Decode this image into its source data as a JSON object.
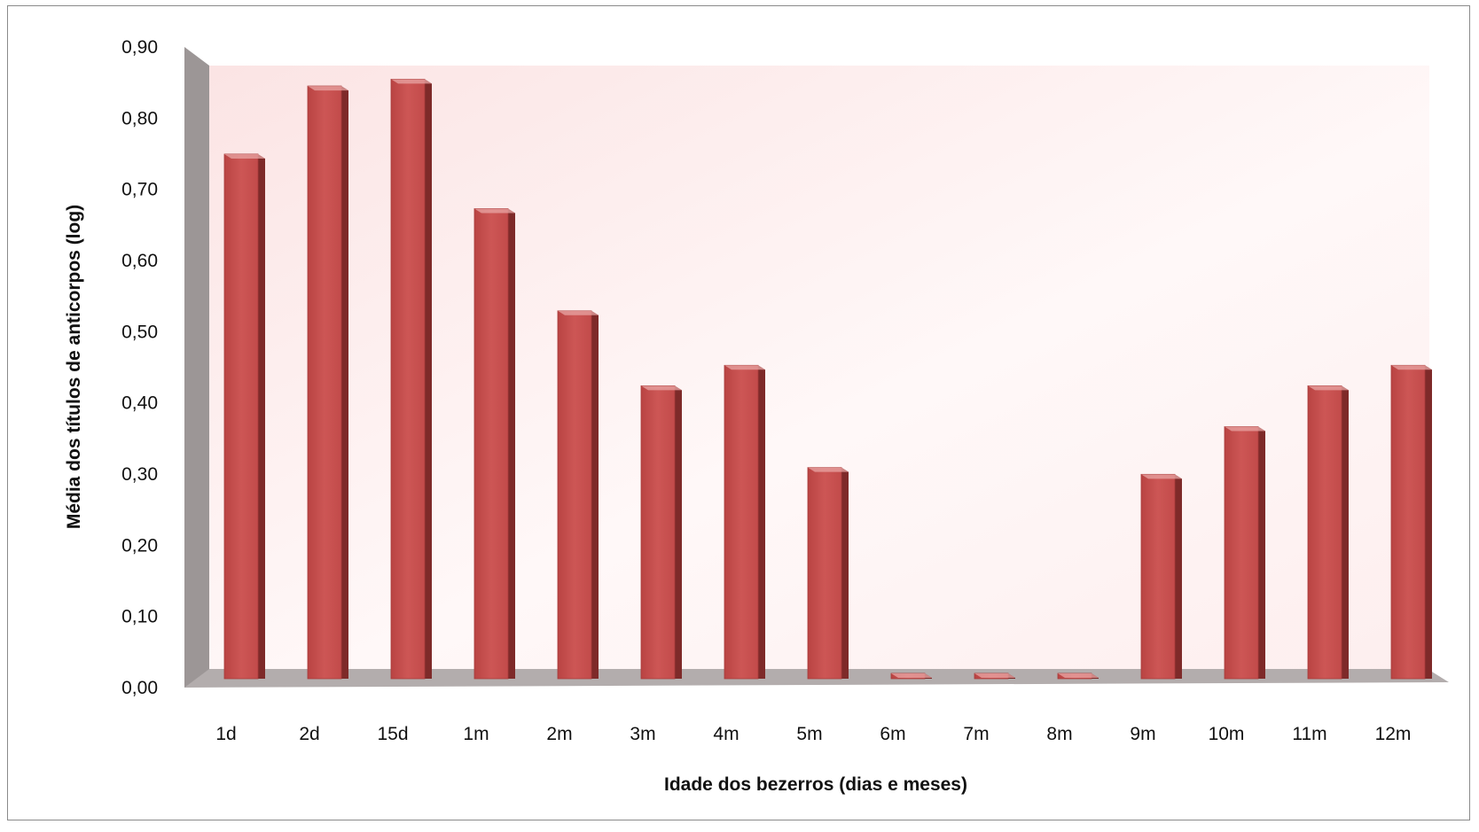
{
  "chart_data": {
    "type": "bar",
    "style": "3d-column",
    "xlabel": "Idade dos bezerros (dias e meses)",
    "ylabel": "Média dos títulos de anticorpos  (log)",
    "categories": [
      "1d",
      "2d",
      "15d",
      "1m",
      "2m",
      "3m",
      "4m",
      "5m",
      "6m",
      "7m",
      "8m",
      "9m",
      "10m",
      "11m",
      "12m"
    ],
    "values": [
      0.77,
      0.87,
      0.88,
      0.69,
      0.54,
      0.43,
      0.46,
      0.31,
      0.0,
      0.0,
      0.0,
      0.3,
      0.37,
      0.43,
      0.46
    ],
    "ylim": [
      0,
      0.9
    ],
    "yticks": [
      "0,00",
      "0,10",
      "0,20",
      "0,30",
      "0,40",
      "0,50",
      "0,60",
      "0,70",
      "0,80",
      "0,90"
    ],
    "grid": false,
    "legend": "none",
    "colors": {
      "bar_front": "#c9504f",
      "bar_side": "#7e2a29",
      "bar_top": "#e8a6a4",
      "wall": "#9c9696",
      "floor": "#b3adad",
      "back_wall_tint": "#fbe6e6"
    }
  }
}
